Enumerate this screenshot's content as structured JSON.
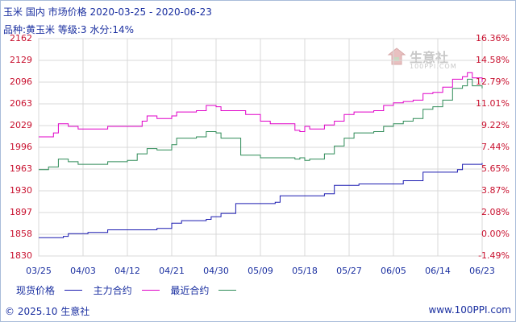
{
  "header": {
    "title": "玉米  国内  市场价格  2020-03-25 - 2020-06-23",
    "subtitle": "品种:黄玉米  等级:3  水分:14%"
  },
  "watermark": {
    "name": "生意社",
    "site": "100PPI.COM"
  },
  "footer": {
    "copyright": "© 2025.10 生意社",
    "url": "www.100PPI.com"
  },
  "colors": {
    "axis_text": "#1a2fa0",
    "tick_text": "#c8102e",
    "grid": "#d9d9d9",
    "series_spot": "#1a1ab0",
    "series_main": "#e000c8",
    "series_recent": "#2e8b57"
  },
  "chart_data": {
    "type": "line",
    "title": "玉米 国内 市场价格 2020-03-25 - 2020-06-23",
    "ylim": [
      1830,
      2162
    ],
    "y_ticks_left": [
      "2162",
      "2129",
      "2096",
      "2063",
      "2029",
      "1996",
      "1963",
      "1930",
      "1897",
      "1858",
      "1830"
    ],
    "y_ticks_right": [
      "16.36%",
      "14.58%",
      "12.79%",
      "11.01%",
      "9.22%",
      "7.44%",
      "5.65%",
      "3.87%",
      "2.08%",
      "0.00%",
      "-1.49%"
    ],
    "x_ticks": [
      "03/25",
      "04/03",
      "04/12",
      "04/21",
      "04/30",
      "05/09",
      "05/18",
      "05/27",
      "06/05",
      "06/14",
      "06/23"
    ],
    "x_range": [
      0,
      90
    ],
    "series": [
      {
        "name": "现货价格",
        "color": "#1a1ab0",
        "points": [
          [
            0,
            1858
          ],
          [
            5,
            1860
          ],
          [
            6,
            1864
          ],
          [
            10,
            1866
          ],
          [
            14,
            1870
          ],
          [
            24,
            1872
          ],
          [
            27,
            1880
          ],
          [
            29,
            1884
          ],
          [
            34,
            1886
          ],
          [
            35,
            1890
          ],
          [
            37,
            1895
          ],
          [
            40,
            1910
          ],
          [
            48,
            1912
          ],
          [
            49,
            1922
          ],
          [
            58,
            1925
          ],
          [
            60,
            1938
          ],
          [
            65,
            1940
          ],
          [
            74,
            1945
          ],
          [
            78,
            1958
          ],
          [
            85,
            1962
          ],
          [
            86,
            1970
          ],
          [
            90,
            1972
          ]
        ]
      },
      {
        "name": "主力合约",
        "color": "#e000c8",
        "points": [
          [
            0,
            2012
          ],
          [
            3,
            2018
          ],
          [
            4,
            2032
          ],
          [
            6,
            2028
          ],
          [
            8,
            2024
          ],
          [
            12,
            2024
          ],
          [
            14,
            2028
          ],
          [
            18,
            2028
          ],
          [
            21,
            2036
          ],
          [
            22,
            2044
          ],
          [
            24,
            2040
          ],
          [
            27,
            2044
          ],
          [
            28,
            2050
          ],
          [
            32,
            2052
          ],
          [
            34,
            2060
          ],
          [
            36,
            2058
          ],
          [
            37,
            2052
          ],
          [
            41,
            2052
          ],
          [
            42,
            2046
          ],
          [
            45,
            2036
          ],
          [
            47,
            2032
          ],
          [
            50,
            2032
          ],
          [
            52,
            2022
          ],
          [
            53,
            2020
          ],
          [
            54,
            2028
          ],
          [
            55,
            2024
          ],
          [
            58,
            2030
          ],
          [
            60,
            2036
          ],
          [
            62,
            2046
          ],
          [
            64,
            2050
          ],
          [
            68,
            2052
          ],
          [
            70,
            2060
          ],
          [
            72,
            2064
          ],
          [
            74,
            2066
          ],
          [
            76,
            2068
          ],
          [
            78,
            2078
          ],
          [
            80,
            2080
          ],
          [
            82,
            2088
          ],
          [
            84,
            2100
          ],
          [
            86,
            2104
          ],
          [
            87,
            2110
          ],
          [
            88,
            2102
          ],
          [
            90,
            2096
          ]
        ]
      },
      {
        "name": "最近合约",
        "color": "#2e8b57",
        "points": [
          [
            0,
            1962
          ],
          [
            2,
            1966
          ],
          [
            4,
            1978
          ],
          [
            6,
            1974
          ],
          [
            8,
            1970
          ],
          [
            12,
            1970
          ],
          [
            14,
            1974
          ],
          [
            18,
            1976
          ],
          [
            20,
            1986
          ],
          [
            22,
            1994
          ],
          [
            24,
            1992
          ],
          [
            27,
            2000
          ],
          [
            28,
            2010
          ],
          [
            32,
            2012
          ],
          [
            34,
            2020
          ],
          [
            36,
            2018
          ],
          [
            37,
            2010
          ],
          [
            40,
            2010
          ],
          [
            41,
            1984
          ],
          [
            44,
            1984
          ],
          [
            45,
            1980
          ],
          [
            50,
            1980
          ],
          [
            52,
            1978
          ],
          [
            53,
            1980
          ],
          [
            54,
            1976
          ],
          [
            55,
            1978
          ],
          [
            58,
            1986
          ],
          [
            60,
            1998
          ],
          [
            62,
            2010
          ],
          [
            64,
            2018
          ],
          [
            68,
            2020
          ],
          [
            70,
            2028
          ],
          [
            72,
            2032
          ],
          [
            74,
            2036
          ],
          [
            76,
            2040
          ],
          [
            78,
            2054
          ],
          [
            80,
            2058
          ],
          [
            82,
            2068
          ],
          [
            84,
            2086
          ],
          [
            86,
            2090
          ],
          [
            87,
            2100
          ],
          [
            88,
            2090
          ],
          [
            90,
            2086
          ]
        ]
      }
    ]
  }
}
